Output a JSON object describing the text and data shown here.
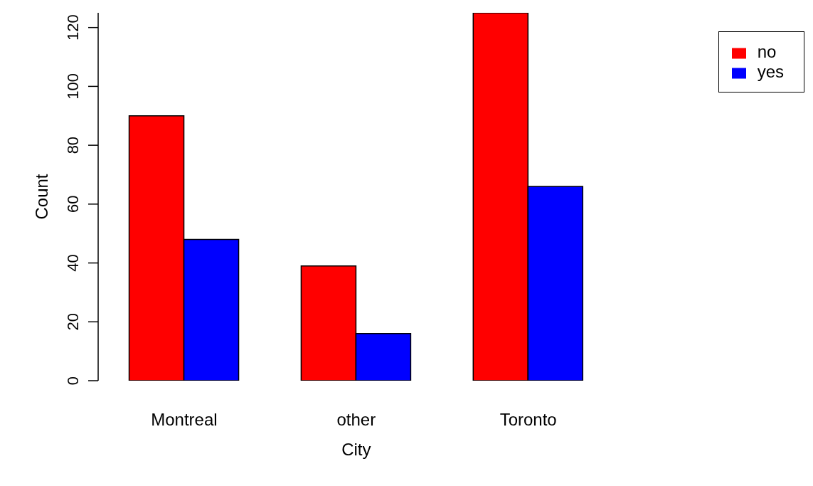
{
  "chart_data": {
    "type": "bar",
    "xlabel": "City",
    "ylabel": "Count",
    "categories": [
      "Montreal",
      "other",
      "Toronto"
    ],
    "series": [
      {
        "name": "no",
        "color": "#ff0000",
        "values": [
          90,
          39,
          125
        ]
      },
      {
        "name": "yes",
        "color": "#0000ff",
        "values": [
          48,
          16,
          66
        ]
      }
    ],
    "ylim": [
      0,
      125
    ],
    "yticks": [
      0,
      20,
      40,
      60,
      80,
      100,
      120
    ],
    "grid": false,
    "legend": "top right"
  }
}
